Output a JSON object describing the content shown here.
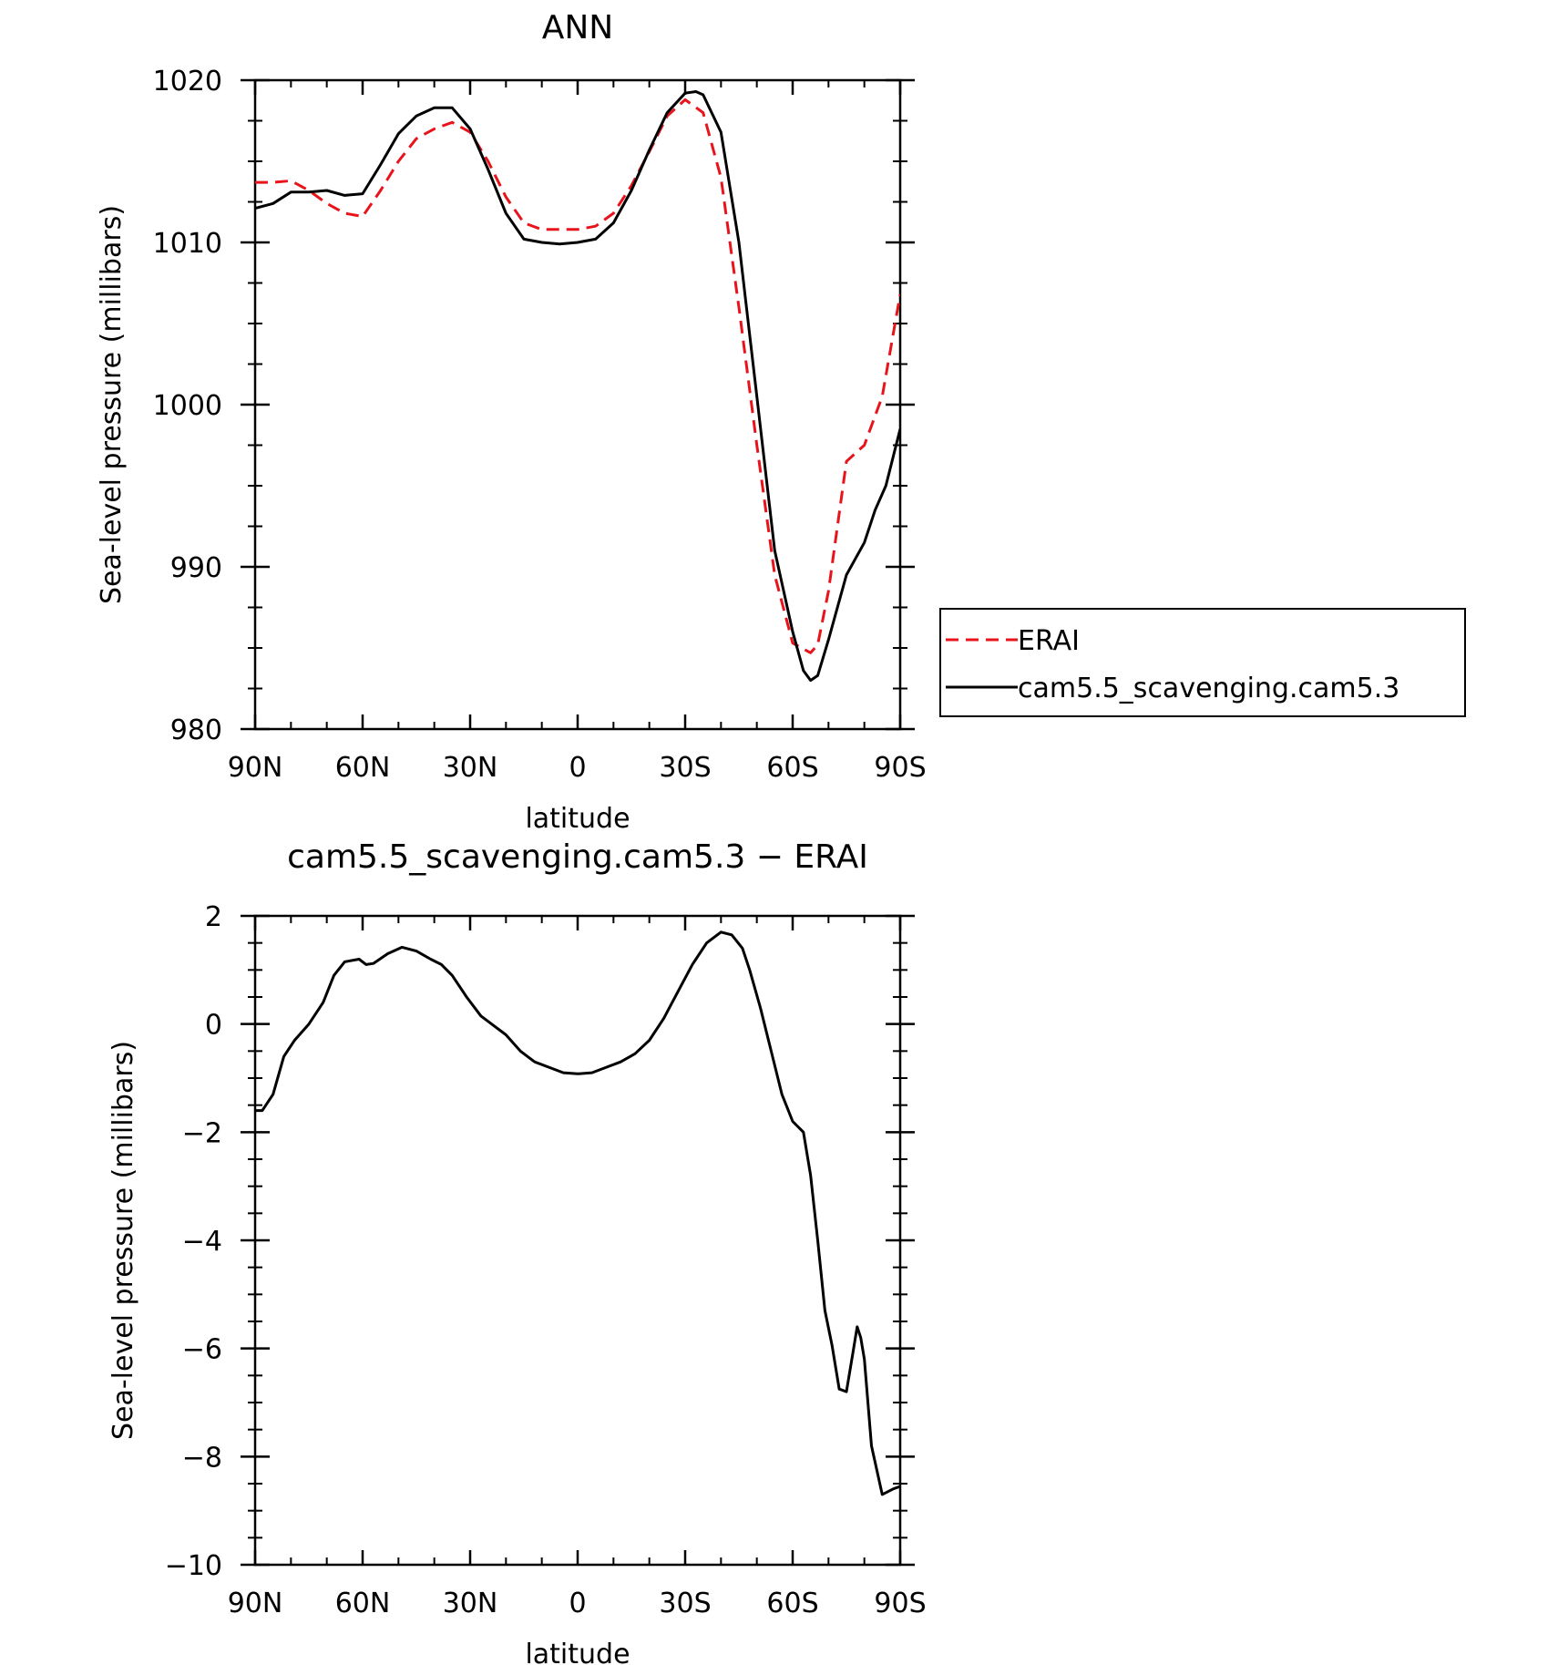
{
  "chart_data": [
    {
      "type": "line",
      "title": "ANN",
      "xlabel": "latitude",
      "ylabel": "Sea-level pressure (millibars)",
      "xlim": [
        90,
        -90
      ],
      "ylim": [
        980,
        1020
      ],
      "x_ticks": [
        90,
        60,
        30,
        0,
        -30,
        -60,
        -90
      ],
      "x_tick_labels": [
        "90N",
        "60N",
        "30N",
        "0",
        "30S",
        "60S",
        "90S"
      ],
      "y_ticks": [
        980,
        990,
        1000,
        1010,
        1020
      ],
      "y_tick_labels": [
        "980",
        "990",
        "1000",
        "1010",
        "1020"
      ],
      "grid": false,
      "legend": {
        "position": "right",
        "entries": [
          "ERAI",
          "cam5.5_scavenging.cam5.3"
        ]
      },
      "series": [
        {
          "name": "ERAI",
          "color": "#e8141b",
          "dash": true,
          "x": [
            90,
            85,
            80,
            75,
            70,
            65,
            60,
            55,
            50,
            45,
            40,
            35,
            30,
            25,
            20,
            15,
            10,
            5,
            0,
            -5,
            -10,
            -15,
            -20,
            -25,
            -30,
            -35,
            -40,
            -45,
            -50,
            -55,
            -60,
            -65,
            -67,
            -70,
            -75,
            -78,
            -80,
            -85,
            -90
          ],
          "y": [
            1013.7,
            1013.7,
            1013.8,
            1013.2,
            1012.4,
            1011.8,
            1011.6,
            1013.2,
            1015.0,
            1016.4,
            1017.0,
            1017.4,
            1016.8,
            1015.0,
            1012.8,
            1011.2,
            1010.8,
            1010.8,
            1010.8,
            1011.0,
            1011.8,
            1013.5,
            1015.6,
            1017.8,
            1018.8,
            1018.0,
            1014.0,
            1006.0,
            997.5,
            989.5,
            985.3,
            984.7,
            985.2,
            988.5,
            996.5,
            997.1,
            997.5,
            1000.5,
            1006.8
          ]
        },
        {
          "name": "cam5.5_scavenging.cam5.3",
          "color": "#000000",
          "dash": false,
          "x": [
            90,
            85,
            80,
            75,
            70,
            65,
            60,
            55,
            50,
            45,
            40,
            35,
            30,
            25,
            20,
            15,
            10,
            5,
            0,
            -5,
            -10,
            -15,
            -20,
            -25,
            -30,
            -33,
            -35,
            -40,
            -45,
            -50,
            -55,
            -60,
            -63,
            -65,
            -67,
            -70,
            -75,
            -80,
            -83,
            -86,
            -90
          ],
          "y": [
            1012.1,
            1012.4,
            1013.1,
            1013.1,
            1013.2,
            1012.9,
            1013.0,
            1014.8,
            1016.7,
            1017.8,
            1018.3,
            1018.3,
            1017.0,
            1014.5,
            1011.8,
            1010.2,
            1010.0,
            1009.9,
            1010.0,
            1010.2,
            1011.2,
            1013.2,
            1015.7,
            1018.0,
            1019.2,
            1019.3,
            1019.1,
            1016.8,
            1010.0,
            1000.5,
            991.0,
            986.0,
            983.6,
            983.0,
            983.3,
            985.5,
            989.5,
            991.5,
            993.5,
            995.0,
            998.5
          ]
        }
      ]
    },
    {
      "type": "line",
      "title": "cam5.5_scavenging.cam5.3 − ERAI",
      "xlabel": "latitude",
      "ylabel": "Sea-level pressure (millibars)",
      "xlim": [
        90,
        -90
      ],
      "ylim": [
        -10,
        2
      ],
      "x_ticks": [
        90,
        60,
        30,
        0,
        -30,
        -60,
        -90
      ],
      "x_tick_labels": [
        "90N",
        "60N",
        "30N",
        "0",
        "30S",
        "60S",
        "90S"
      ],
      "y_ticks": [
        -10,
        -8,
        -6,
        -4,
        -2,
        0,
        2
      ],
      "y_tick_labels": [
        "−10",
        "−8",
        "−6",
        "−4",
        "−2",
        "0",
        "2"
      ],
      "grid": false,
      "series": [
        {
          "color": "#000000",
          "dash": false,
          "x": [
            90,
            88,
            85,
            82,
            79,
            75,
            71,
            68,
            65,
            61,
            59,
            57,
            53,
            49,
            45,
            41,
            38,
            35,
            31,
            27,
            24,
            20,
            16,
            12,
            8,
            4,
            0,
            -4,
            -8,
            -12,
            -16,
            -20,
            -24,
            -28,
            -32,
            -36,
            -40,
            -43,
            -46,
            -48,
            -51,
            -54,
            -57,
            -60,
            -63,
            -65,
            -67,
            -69,
            -71,
            -73,
            -75,
            -77,
            -78,
            -79,
            -80,
            -82,
            -85,
            -88,
            -90
          ],
          "y": [
            -1.6,
            -1.6,
            -1.3,
            -0.6,
            -0.3,
            0.0,
            0.4,
            0.9,
            1.15,
            1.2,
            1.1,
            1.12,
            1.3,
            1.42,
            1.35,
            1.2,
            1.1,
            0.9,
            0.5,
            0.15,
            0.0,
            -0.2,
            -0.5,
            -0.7,
            -0.8,
            -0.9,
            -0.92,
            -0.9,
            -0.8,
            -0.7,
            -0.55,
            -0.3,
            0.1,
            0.6,
            1.1,
            1.5,
            1.7,
            1.65,
            1.4,
            1.0,
            0.3,
            -0.5,
            -1.3,
            -1.8,
            -2.0,
            -2.8,
            -4.0,
            -5.3,
            -5.95,
            -6.75,
            -6.8,
            -6.0,
            -5.6,
            -5.8,
            -6.2,
            -7.8,
            -8.7,
            -8.6,
            -8.55
          ]
        }
      ]
    }
  ]
}
